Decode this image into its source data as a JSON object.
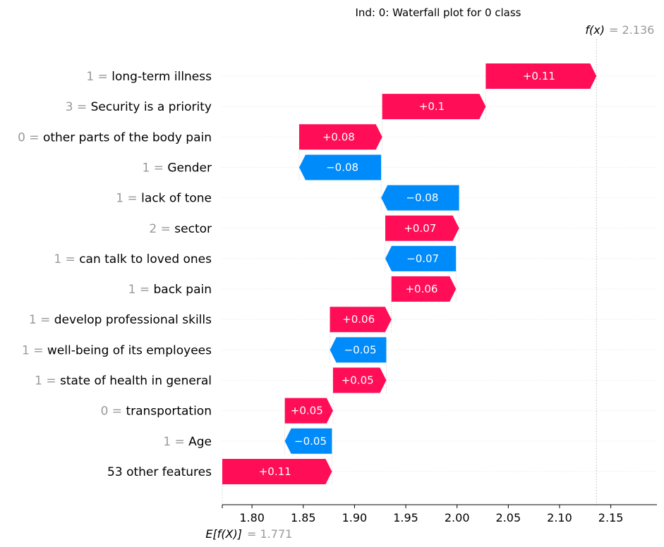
{
  "chart_data": {
    "type": "waterfall",
    "title": "Ind: 0: Waterfall plot for 0 class",
    "base_value_label": "E[f(X)]",
    "base_value": 1.771,
    "base_value_text": "1.771",
    "output_value_label": "f(x)",
    "output_value": 2.136,
    "output_value_text": "2.136",
    "xlim": [
      1.771,
      2.195
    ],
    "xticks": [
      1.8,
      1.85,
      1.9,
      1.95,
      2.0,
      2.05,
      2.1,
      2.15
    ],
    "xtick_labels": [
      "1.80",
      "1.85",
      "1.90",
      "1.95",
      "2.00",
      "2.05",
      "2.10",
      "2.15"
    ],
    "positive_color": "#ff0d57",
    "negative_color": "#008bfb",
    "features": [
      {
        "value": "1",
        "name": "long-term illness",
        "start": 2.028,
        "end": 2.136,
        "label": "+0.11"
      },
      {
        "value": "3",
        "name": "Security is a priority",
        "start": 1.927,
        "end": 2.028,
        "label": "+0.1"
      },
      {
        "value": "0",
        "name": "other parts of the body pain",
        "start": 1.846,
        "end": 1.927,
        "label": "+0.08"
      },
      {
        "value": "1",
        "name": "Gender",
        "start": 1.926,
        "end": 1.846,
        "label": "−0.08"
      },
      {
        "value": "1",
        "name": "lack of tone",
        "start": 2.002,
        "end": 1.926,
        "label": "−0.08"
      },
      {
        "value": "2",
        "name": "sector",
        "start": 1.93,
        "end": 2.002,
        "label": "+0.07"
      },
      {
        "value": "1",
        "name": "can talk to loved ones",
        "start": 1.999,
        "end": 1.93,
        "label": "−0.07"
      },
      {
        "value": "1",
        "name": "back pain",
        "start": 1.936,
        "end": 1.999,
        "label": "+0.06"
      },
      {
        "value": "1",
        "name": "develop professional skills",
        "start": 1.876,
        "end": 1.936,
        "label": "+0.06"
      },
      {
        "value": "1",
        "name": "well-being of its employees",
        "start": 1.931,
        "end": 1.876,
        "label": "−0.05"
      },
      {
        "value": "1",
        "name": "state of health in general",
        "start": 1.879,
        "end": 1.931,
        "label": "+0.05"
      },
      {
        "value": "0",
        "name": "transportation",
        "start": 1.832,
        "end": 1.879,
        "label": "+0.05"
      },
      {
        "value": "1",
        "name": "Age",
        "start": 1.878,
        "end": 1.832,
        "label": "−0.05"
      },
      {
        "value": "",
        "name": "53 other features",
        "start": 1.771,
        "end": 1.878,
        "label": "+0.11"
      }
    ]
  }
}
